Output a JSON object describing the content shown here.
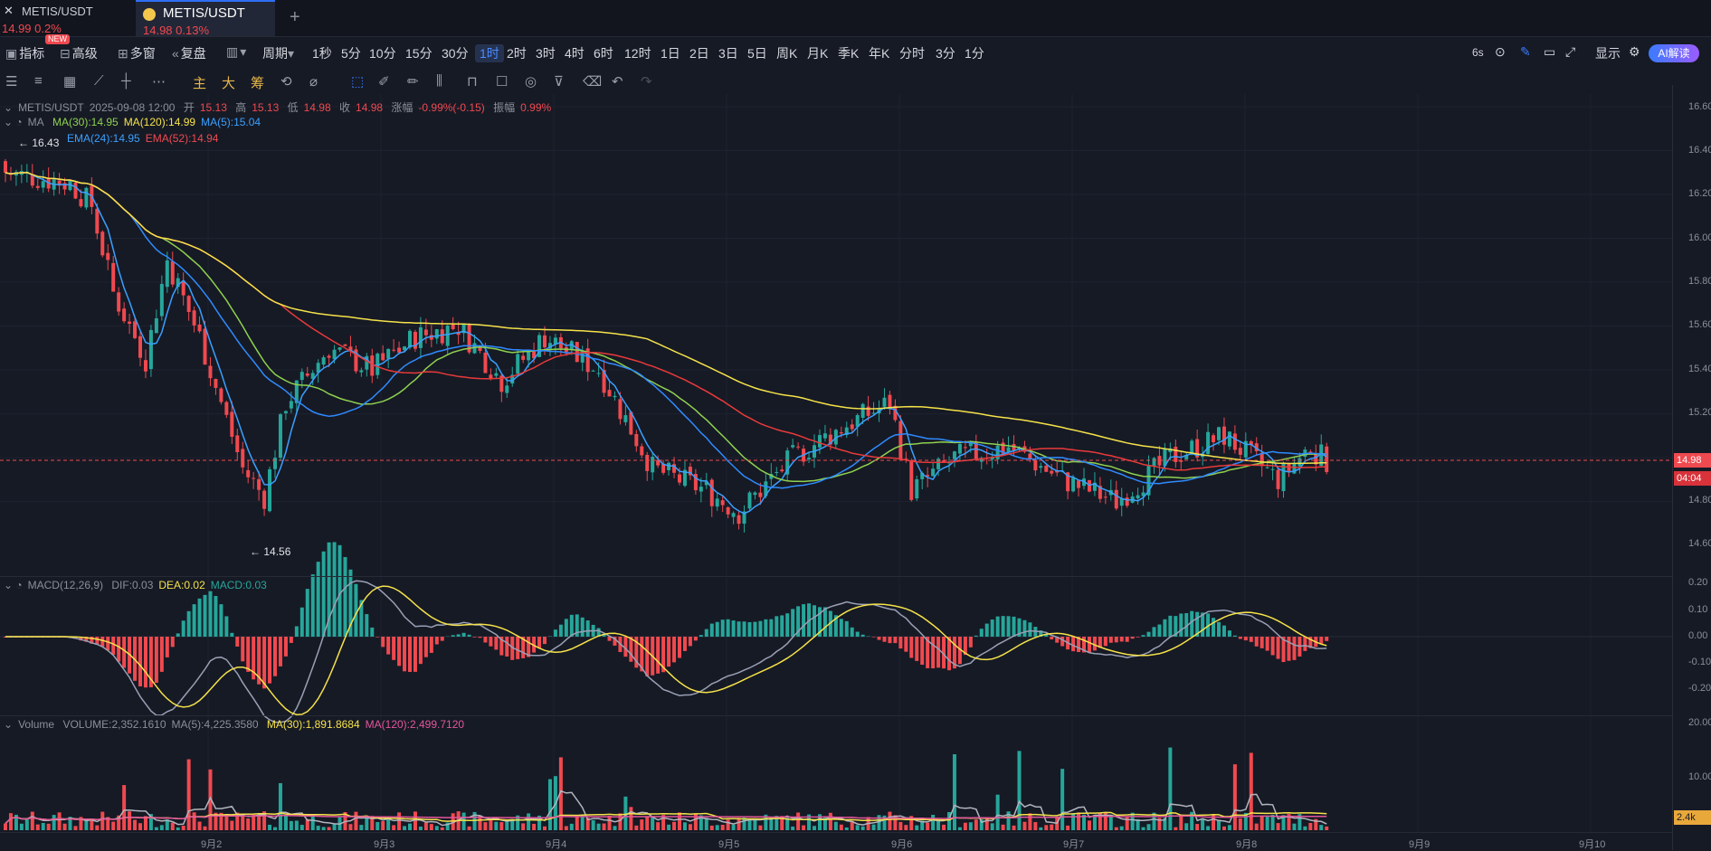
{
  "tabs": [
    {
      "symbol": "METIS/USDT",
      "price": "14.99",
      "change": "0.2%"
    },
    {
      "symbol": "METIS/USDT",
      "price": "14.98",
      "change": "0.13%"
    }
  ],
  "new_badge": "NEW",
  "add_tab": "+",
  "toolbar": {
    "indicators": "指标",
    "advanced": "高级",
    "multi_window": "多窗",
    "replay": "复盘",
    "period": "周期",
    "intervals": [
      "1秒",
      "5分",
      "10分",
      "15分",
      "30分",
      "1时",
      "2时",
      "3时",
      "4时",
      "6时",
      "12时",
      "1日",
      "2日",
      "3日",
      "5日",
      "周K",
      "月K",
      "季K",
      "年K",
      "分时",
      "3分",
      "1分"
    ],
    "active_interval": "1时",
    "refresh": "6s",
    "display": "显示",
    "ai": "AI解读"
  },
  "drawing_toolbar": {
    "main": "主",
    "big": "大",
    "chip": "筹"
  },
  "main_legend": {
    "symbol": "METIS/USDT",
    "datetime": "2025-09-08 12:00",
    "open_label": "开",
    "open": "15.13",
    "high_label": "高",
    "high": "15.13",
    "low_label": "低",
    "low": "14.98",
    "close_label": "收",
    "close": "14.98",
    "change_label": "涨幅",
    "change": "-0.99%(-0.15)",
    "amp_label": "振幅",
    "amp": "0.99%"
  },
  "ma_legend": {
    "name": "MA",
    "ma30": "MA(30):14.95",
    "ma120": "MA(120):14.99",
    "ma5": "MA(5):15.04"
  },
  "ema_legend": {
    "ema24": "EMA(24):14.95",
    "ema52": "EMA(52):14.94"
  },
  "annotations": {
    "high": "16.43",
    "low": "14.56"
  },
  "macd_legend": {
    "name": "MACD(12,26,9)",
    "dif": "DIF:0.03",
    "dea": "DEA:0.02",
    "macd": "MACD:0.03"
  },
  "volume_legend": {
    "name": "Volume",
    "volume": "VOLUME:2,352.1610",
    "ma5": "MA(5):4,225.3580",
    "ma30": "MA(30):1,891.8684",
    "ma120": "MA(120):2,499.7120"
  },
  "price_axis": [
    "16.60",
    "16.40",
    "16.20",
    "16.00",
    "15.80",
    "15.60",
    "15.40",
    "15.20",
    "14.80",
    "14.60"
  ],
  "last_price_tag": "14.98",
  "countdown_tag": "04:04",
  "macd_axis": [
    "0.20",
    "0.10",
    "0.00",
    "-0.10",
    "-0.20"
  ],
  "volume_axis": [
    "20.00",
    "10.00"
  ],
  "volume_tag": "2.4k",
  "dates": [
    "9月2",
    "9月3",
    "9月4",
    "9月5",
    "9月6",
    "9月7",
    "9月8",
    "9月9",
    "9月10"
  ],
  "colors": {
    "up": "#26a69a",
    "down": "#f0494f",
    "ma5": "#3aa0ff",
    "ma30": "#8fd14f",
    "ema": "#e83a3a",
    "ma120": "#f5e24a",
    "bg": "#161a25"
  }
}
